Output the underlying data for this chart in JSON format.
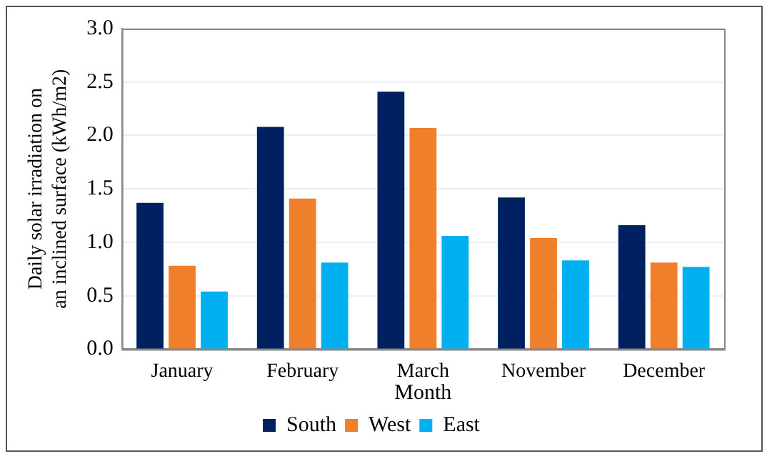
{
  "chart_data": {
    "type": "bar",
    "xlabel": "Month",
    "ylabel": "Daily solar irradiation on an inclined surface (kWh/m2)",
    "categories": [
      "January",
      "February",
      "March",
      "November",
      "December"
    ],
    "series": [
      {
        "name": "South",
        "color": "#002060",
        "values": [
          1.37,
          2.08,
          2.41,
          1.42,
          1.16
        ]
      },
      {
        "name": "West",
        "color": "#f07f2c",
        "values": [
          0.78,
          1.41,
          2.07,
          1.04,
          0.81
        ]
      },
      {
        "name": "East",
        "color": "#00b0f0",
        "values": [
          0.54,
          0.81,
          1.06,
          0.83,
          0.77
        ]
      }
    ],
    "ylim": [
      0,
      3
    ],
    "yticks": [
      {
        "value": 0,
        "label": "0.0"
      },
      {
        "value": 0.5,
        "label": "0.5"
      },
      {
        "value": 1,
        "label": "1.0"
      },
      {
        "value": 1.5,
        "label": "1.5"
      },
      {
        "value": 2,
        "label": "2.0"
      },
      {
        "value": 2.5,
        "label": "2.5"
      },
      {
        "value": 3,
        "label": "3.0"
      }
    ],
    "grid": "y",
    "legend": "bottom"
  }
}
